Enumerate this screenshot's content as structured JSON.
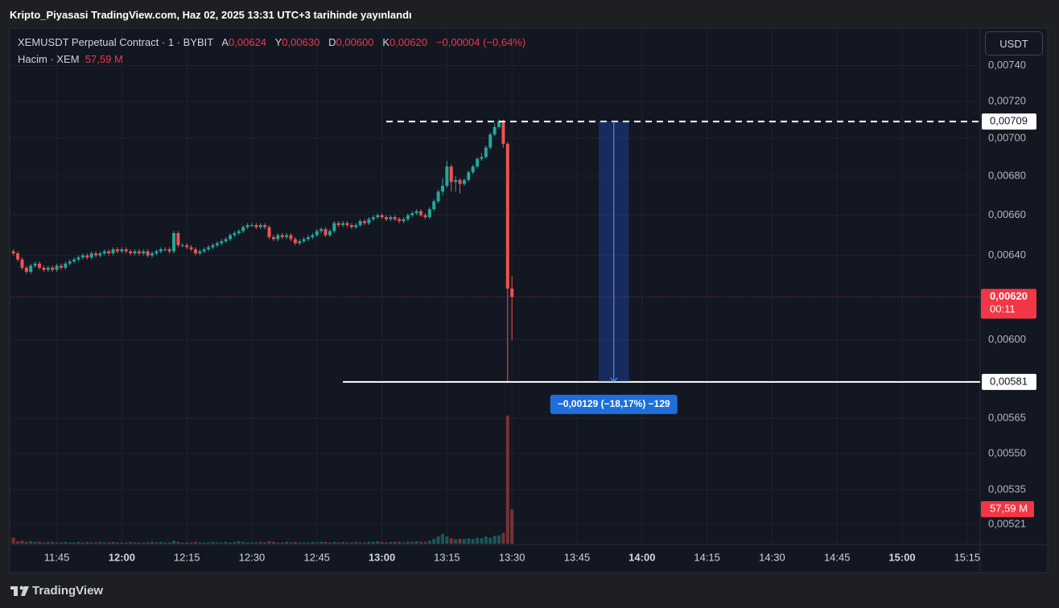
{
  "header": {
    "title": "Kripto_Piyasasi TradingView.com, Haz 02, 2025 13:31 UTC+3 tarihinde yayınlandı",
    "symbol": "XEMUSDT Perpetual Contract · 1 · BYBIT",
    "ohlc": [
      {
        "key": "A",
        "value": "0,00624"
      },
      {
        "key": "Y",
        "value": "0,00630"
      },
      {
        "key": "D",
        "value": "0,00600"
      },
      {
        "key": "K",
        "value": "0,00620"
      }
    ],
    "change": "−0,00004 (−0,64%)",
    "volume_title": "Hacim · XEM",
    "currency": "USDT"
  },
  "chart_data": {
    "type": "candlestick",
    "log_scale": true,
    "grid": true,
    "up_color": "#26a69a",
    "down_color": "#ef5350",
    "x": [
      695,
      696,
      697,
      698,
      699,
      700,
      701,
      702,
      703,
      704,
      705,
      706,
      707,
      708,
      709,
      710,
      711,
      712,
      713,
      714,
      715,
      716,
      717,
      718,
      719,
      720,
      721,
      722,
      723,
      724,
      725,
      726,
      727,
      728,
      729,
      730,
      731,
      732,
      733,
      734,
      735,
      736,
      737,
      738,
      739,
      740,
      741,
      742,
      743,
      744,
      745,
      746,
      747,
      748,
      749,
      750,
      751,
      752,
      753,
      754,
      755,
      756,
      757,
      758,
      759,
      760,
      761,
      762,
      763,
      764,
      765,
      766,
      767,
      768,
      769,
      770,
      771,
      772,
      773,
      774,
      775,
      776,
      777,
      778,
      779,
      780,
      781,
      782,
      783,
      784,
      785,
      786,
      787,
      788,
      789,
      790,
      791,
      792,
      793,
      794,
      795,
      796,
      797,
      798,
      799,
      800,
      801,
      802,
      803,
      804,
      805,
      806,
      807,
      808,
      809,
      810
    ],
    "open": [
      0.00642,
      0.00641,
      0.00638,
      0.00634,
      0.00632,
      0.00635,
      0.00636,
      0.00634,
      0.00633,
      0.00634,
      0.00633,
      0.00635,
      0.00634,
      0.00636,
      0.00637,
      0.00638,
      0.00639,
      0.0064,
      0.00639,
      0.00641,
      0.0064,
      0.00641,
      0.00642,
      0.00641,
      0.00643,
      0.00642,
      0.00643,
      0.00642,
      0.00641,
      0.00642,
      0.00641,
      0.00642,
      0.0064,
      0.00641,
      0.00642,
      0.00643,
      0.00643,
      0.00642,
      0.00651,
      0.00645,
      0.00645,
      0.00644,
      0.00643,
      0.00641,
      0.00642,
      0.00643,
      0.00644,
      0.00645,
      0.00646,
      0.00647,
      0.00648,
      0.0065,
      0.00651,
      0.00652,
      0.00654,
      0.00655,
      0.00655,
      0.00654,
      0.00655,
      0.00654,
      0.00649,
      0.00648,
      0.0065,
      0.00649,
      0.0065,
      0.00648,
      0.00646,
      0.00647,
      0.00648,
      0.00649,
      0.0065,
      0.00652,
      0.00653,
      0.0065,
      0.00652,
      0.00656,
      0.00655,
      0.00656,
      0.00655,
      0.00654,
      0.00655,
      0.00657,
      0.00656,
      0.00658,
      0.00659,
      0.0066,
      0.00659,
      0.00658,
      0.00659,
      0.00658,
      0.00657,
      0.00658,
      0.0066,
      0.00661,
      0.00662,
      0.0066,
      0.00659,
      0.00663,
      0.00667,
      0.00672,
      0.00675,
      0.00685,
      0.00677,
      0.00678,
      0.00676,
      0.00678,
      0.00682,
      0.00685,
      0.00689,
      0.0069,
      0.00695,
      0.00702,
      0.00706,
      0.00709,
      0.00697,
      0.00624
    ],
    "high": [
      0.00643,
      0.00642,
      0.00639,
      0.00635,
      0.00636,
      0.00637,
      0.00637,
      0.00635,
      0.00635,
      0.00635,
      0.00636,
      0.00636,
      0.00637,
      0.00638,
      0.00639,
      0.0064,
      0.00641,
      0.00641,
      0.00642,
      0.00642,
      0.00642,
      0.00643,
      0.00643,
      0.00644,
      0.00644,
      0.00644,
      0.00644,
      0.00643,
      0.00643,
      0.00643,
      0.00643,
      0.00643,
      0.00642,
      0.00643,
      0.00644,
      0.00644,
      0.00644,
      0.00652,
      0.00652,
      0.00646,
      0.00646,
      0.00645,
      0.00644,
      0.00643,
      0.00644,
      0.00645,
      0.00646,
      0.00647,
      0.00648,
      0.00649,
      0.00651,
      0.00652,
      0.00653,
      0.00655,
      0.00656,
      0.00656,
      0.00656,
      0.00656,
      0.00656,
      0.00655,
      0.0065,
      0.00651,
      0.00651,
      0.00651,
      0.00651,
      0.00649,
      0.00648,
      0.00649,
      0.0065,
      0.00651,
      0.00653,
      0.00654,
      0.00654,
      0.00653,
      0.00657,
      0.00657,
      0.00657,
      0.00657,
      0.00656,
      0.00656,
      0.00658,
      0.00658,
      0.00659,
      0.0066,
      0.00661,
      0.00661,
      0.0066,
      0.0066,
      0.0066,
      0.00659,
      0.00659,
      0.00661,
      0.00662,
      0.00663,
      0.00663,
      0.00661,
      0.00664,
      0.00668,
      0.00673,
      0.00679,
      0.00688,
      0.00686,
      0.0068,
      0.00679,
      0.00679,
      0.00683,
      0.00686,
      0.0069,
      0.00692,
      0.00696,
      0.00703,
      0.00708,
      0.0071,
      0.0071,
      0.00698,
      0.0063
    ],
    "low": [
      0.0064,
      0.00637,
      0.00633,
      0.00631,
      0.00631,
      0.00634,
      0.00633,
      0.00632,
      0.00632,
      0.00632,
      0.00632,
      0.00633,
      0.00633,
      0.00635,
      0.00636,
      0.00637,
      0.00638,
      0.00638,
      0.00638,
      0.00639,
      0.00639,
      0.0064,
      0.0064,
      0.0064,
      0.00641,
      0.00641,
      0.00641,
      0.0064,
      0.0064,
      0.0064,
      0.0064,
      0.00639,
      0.00639,
      0.0064,
      0.00641,
      0.00642,
      0.00641,
      0.00641,
      0.00644,
      0.00644,
      0.00643,
      0.00642,
      0.0064,
      0.0064,
      0.00641,
      0.00642,
      0.00643,
      0.00644,
      0.00645,
      0.00646,
      0.00647,
      0.00649,
      0.0065,
      0.00651,
      0.00653,
      0.00654,
      0.00653,
      0.00653,
      0.00653,
      0.00648,
      0.00647,
      0.00647,
      0.00648,
      0.00648,
      0.00647,
      0.00645,
      0.00645,
      0.00646,
      0.00647,
      0.00648,
      0.00649,
      0.00651,
      0.00649,
      0.00649,
      0.00651,
      0.00654,
      0.00654,
      0.00654,
      0.00653,
      0.00653,
      0.00654,
      0.00655,
      0.00655,
      0.00657,
      0.00658,
      0.00658,
      0.00657,
      0.00657,
      0.00657,
      0.00656,
      0.00656,
      0.00657,
      0.00659,
      0.0066,
      0.00659,
      0.00658,
      0.00658,
      0.00662,
      0.00666,
      0.0067,
      0.00674,
      0.00672,
      0.00672,
      0.00671,
      0.00675,
      0.00677,
      0.00681,
      0.00684,
      0.00688,
      0.00689,
      0.00694,
      0.00701,
      0.00705,
      0.00695,
      0.00581,
      0.006
    ],
    "close": [
      0.00641,
      0.00638,
      0.00634,
      0.00632,
      0.00635,
      0.00636,
      0.00634,
      0.00633,
      0.00634,
      0.00633,
      0.00635,
      0.00634,
      0.00636,
      0.00637,
      0.00638,
      0.00639,
      0.0064,
      0.00639,
      0.00641,
      0.0064,
      0.00641,
      0.00642,
      0.00641,
      0.00643,
      0.00642,
      0.00643,
      0.00642,
      0.00641,
      0.00642,
      0.00641,
      0.00642,
      0.0064,
      0.00641,
      0.00642,
      0.00643,
      0.00643,
      0.00642,
      0.00651,
      0.00645,
      0.00645,
      0.00644,
      0.00643,
      0.00641,
      0.00642,
      0.00643,
      0.00644,
      0.00645,
      0.00646,
      0.00647,
      0.00648,
      0.0065,
      0.00651,
      0.00652,
      0.00654,
      0.00655,
      0.00655,
      0.00654,
      0.00655,
      0.00654,
      0.00649,
      0.00648,
      0.0065,
      0.00649,
      0.0065,
      0.00648,
      0.00646,
      0.00647,
      0.00648,
      0.00649,
      0.0065,
      0.00652,
      0.00653,
      0.0065,
      0.00652,
      0.00656,
      0.00655,
      0.00656,
      0.00655,
      0.00654,
      0.00655,
      0.00657,
      0.00656,
      0.00658,
      0.00659,
      0.0066,
      0.00659,
      0.00658,
      0.00659,
      0.00658,
      0.00657,
      0.00658,
      0.0066,
      0.00661,
      0.00662,
      0.0066,
      0.00659,
      0.00663,
      0.00667,
      0.00672,
      0.00675,
      0.00685,
      0.00677,
      0.00678,
      0.00676,
      0.00678,
      0.00682,
      0.00685,
      0.00689,
      0.0069,
      0.00695,
      0.00702,
      0.00706,
      0.00709,
      0.00697,
      0.00624,
      0.0062
    ],
    "volume": [
      10,
      4,
      5,
      3,
      4,
      3,
      3,
      2,
      3,
      3,
      2,
      2,
      3,
      2,
      2,
      3,
      2,
      3,
      2,
      2,
      3,
      2,
      2,
      3,
      2,
      2,
      2,
      3,
      2,
      2,
      2,
      2,
      3,
      2,
      3,
      2,
      2,
      5,
      3,
      2,
      2,
      2,
      3,
      2,
      2,
      2,
      3,
      2,
      2,
      3,
      2,
      3,
      4,
      3,
      2,
      2,
      2,
      3,
      2,
      4,
      3,
      2,
      2,
      3,
      2,
      3,
      2,
      2,
      2,
      3,
      2,
      3,
      3,
      2,
      3,
      2,
      3,
      2,
      2,
      3,
      2,
      2,
      3,
      3,
      4,
      3,
      2,
      3,
      3,
      3,
      2,
      3,
      3,
      4,
      3,
      3,
      5,
      8,
      12,
      16,
      12,
      9,
      7,
      8,
      8,
      9,
      8,
      10,
      9,
      12,
      10,
      13,
      14,
      18,
      214,
      57.59
    ],
    "volume_lim": [
      0,
      860
    ],
    "volume_last_label": "57,59 M",
    "ylim": [
      0.00761,
      0.005134
    ],
    "yticks": [
      {
        "value": 0.0074,
        "label": "0,00740"
      },
      {
        "value": 0.0072,
        "label": "0,00720"
      },
      {
        "value": 0.007,
        "label": "0,00700"
      },
      {
        "value": 0.0068,
        "label": "0,00680"
      },
      {
        "value": 0.0066,
        "label": "0,00660"
      },
      {
        "value": 0.0064,
        "label": "0,00640"
      },
      {
        "value": 0.006,
        "label": "0,00600"
      },
      {
        "value": 0.00565,
        "label": "0,00565"
      },
      {
        "value": 0.0055,
        "label": "0,00550"
      },
      {
        "value": 0.00535,
        "label": "0,00535"
      },
      {
        "value": 0.00521,
        "label": "0,00521"
      }
    ],
    "xlim": [
      694.5,
      918
    ],
    "xticks": [
      {
        "value": 705,
        "label": "11:45"
      },
      {
        "value": 720,
        "label": "12:00"
      },
      {
        "value": 735,
        "label": "12:15"
      },
      {
        "value": 750,
        "label": "12:30"
      },
      {
        "value": 765,
        "label": "12:45"
      },
      {
        "value": 780,
        "label": "13:00"
      },
      {
        "value": 795,
        "label": "13:15"
      },
      {
        "value": 810,
        "label": "13:30"
      },
      {
        "value": 825,
        "label": "13:45"
      },
      {
        "value": 840,
        "label": "14:00"
      },
      {
        "value": 855,
        "label": "14:15"
      },
      {
        "value": 870,
        "label": "14:30"
      },
      {
        "value": 885,
        "label": "14:45"
      },
      {
        "value": 900,
        "label": "15:00"
      },
      {
        "value": 915,
        "label": "15:15"
      }
    ],
    "price_line": {
      "value": 0.0062,
      "label": "0,00620",
      "countdown": "00:11"
    },
    "hlines": [
      {
        "value": 0.00709,
        "label": "0,00709",
        "dashed": true,
        "x_start": 781
      },
      {
        "value": 0.00581,
        "label": "0,00581",
        "dashed": false,
        "x_start": 771
      }
    ],
    "measure": {
      "x": [
        830,
        837
      ],
      "from": 0.00709,
      "to": 0.00581,
      "label": "−0,00129 (−18,17%) −129"
    }
  },
  "footer": {
    "brand": "TradingView"
  }
}
